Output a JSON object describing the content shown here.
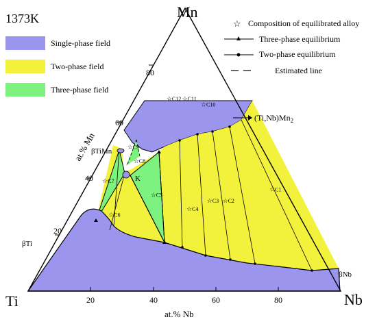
{
  "diagram": {
    "temperature": "1373K",
    "corners": {
      "bottom_left": "Ti",
      "top": "Mn",
      "bottom_right": "Nb"
    },
    "axis_labels": {
      "left": "at.% Mn",
      "bottom": "at.% Nb"
    },
    "left_ticks": [
      "20",
      "40",
      "60",
      "80"
    ],
    "bottom_ticks": [
      "20",
      "40",
      "60",
      "80"
    ],
    "legend_fields": [
      {
        "label": "Single-phase field",
        "color": "#9b95ee"
      },
      {
        "label": "Two-phase field",
        "color": "#f2f23c"
      },
      {
        "label": "Three-phase field",
        "color": "#7ef27e"
      }
    ],
    "legend_symbols": [
      {
        "label": "Composition of equilibrated alloy",
        "symbol": "star"
      },
      {
        "label": "Three-phase equilibrium",
        "symbol": "triangle-line"
      },
      {
        "label": "Two-phase equilibrium",
        "symbol": "dot-line"
      },
      {
        "label": "Estimated line",
        "symbol": "dash"
      }
    ],
    "phase_labels": {
      "laves": "(Ti,Nb)Mn",
      "laves_sub": "2",
      "beta_timn": "βTiMn",
      "beta_ti": "βTi",
      "beta_nb": "βNb",
      "point_k": "K"
    },
    "alloys": [
      {
        "label": "C1",
        "nb": 60,
        "mn": 36
      },
      {
        "label": "C2",
        "nb": 47,
        "mn": 32
      },
      {
        "label": "C3",
        "nb": 42,
        "mn": 32
      },
      {
        "label": "C4",
        "nb": 37,
        "mn": 29
      },
      {
        "label": "C5",
        "nb": 23,
        "mn": 34
      },
      {
        "label": "C6",
        "nb": 13,
        "mn": 27
      },
      {
        "label": "C7",
        "nb": 5,
        "mn": 39
      },
      {
        "label": "C8",
        "nb": 11.5,
        "mn": 46
      },
      {
        "label": "C9",
        "nb": 7,
        "mn": 51
      },
      {
        "label": "C10",
        "nb": 23,
        "mn": 66
      },
      {
        "label": "C11",
        "nb": 16,
        "mn": 68
      },
      {
        "label": "C12",
        "nb": 11,
        "mn": 68
      }
    ]
  }
}
